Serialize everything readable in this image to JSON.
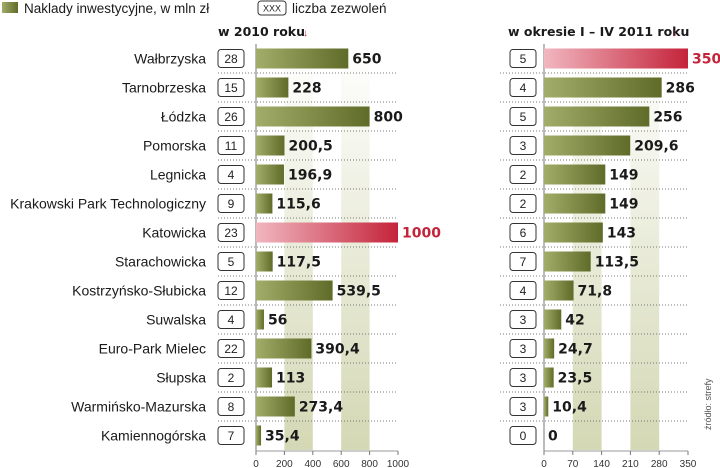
{
  "legend": {
    "investment_label": "Naklady inwestycyjne, w mln zł",
    "count_box": "XXX",
    "count_label": "liczba zezwoleń"
  },
  "source": "źródło: strefy",
  "colors": {
    "bar": "#6e7a32",
    "bar_highlight": "#d0334d",
    "band": "#e4e6d2",
    "band_dark": "#c8cca4",
    "text": "#1a1a1a"
  },
  "chart_data": [
    {
      "type": "bar",
      "orientation": "horizontal",
      "title": "w 2010 roku",
      "xlim": [
        0,
        1000
      ],
      "ticks": [
        0,
        200,
        400,
        600,
        800,
        1000
      ],
      "categories": [
        "Wałbrzyska",
        "Tarnobrzeska",
        "Łódzka",
        "Pomorska",
        "Legnicka",
        "Krakowski Park Technologiczny",
        "Katowicka",
        "Starachowicka",
        "Kostrzyńsko-Słubicka",
        "Suwalska",
        "Euro-Park Mielec",
        "Słupska",
        "Warmińsko-Mazurska",
        "Kamiennogórska"
      ],
      "values": [
        650,
        228,
        800,
        200.5,
        196.9,
        115.6,
        1000,
        117.5,
        539.5,
        56,
        390.4,
        113,
        273.4,
        35.4
      ],
      "value_labels": [
        "650",
        "228",
        "800",
        "200,5",
        "196,9",
        "115,6",
        "1000",
        "117,5",
        "539,5",
        "56",
        "390,4",
        "113",
        "273,4",
        "35,4"
      ],
      "permits": [
        "28",
        "15",
        "26",
        "11",
        "4",
        "9",
        "23",
        "5",
        "12",
        "4",
        "22",
        "2",
        "8",
        "7"
      ],
      "highlight_index": 6
    },
    {
      "type": "bar",
      "orientation": "horizontal",
      "title": "w okresie I – IV 2011 roku",
      "xlim": [
        0,
        350
      ],
      "ticks": [
        0,
        70,
        140,
        210,
        280,
        350
      ],
      "categories": [
        "Wałbrzyska",
        "Tarnobrzeska",
        "Łódzka",
        "Pomorska",
        "Legnicka",
        "Krakowski Park Technologiczny",
        "Katowicka",
        "Starachowicka",
        "Kostrzyńsko-Słubicka",
        "Suwalska",
        "Euro-Park Mielec",
        "Słupska",
        "Warmińsko-Mazurska",
        "Kamiennogórska"
      ],
      "values": [
        350,
        286,
        256,
        209.6,
        149,
        149,
        143,
        113.5,
        71.8,
        42,
        24.7,
        23.5,
        10.4,
        0
      ],
      "value_labels": [
        "350",
        "286",
        "256",
        "209,6",
        "149",
        "149",
        "143",
        "113,5",
        "71,8",
        "42",
        "24,7",
        "23,5",
        "10,4",
        "0"
      ],
      "permits": [
        "5",
        "4",
        "5",
        "3",
        "2",
        "2",
        "6",
        "7",
        "4",
        "3",
        "3",
        "3",
        "3",
        "0"
      ],
      "highlight_index": 0
    }
  ]
}
